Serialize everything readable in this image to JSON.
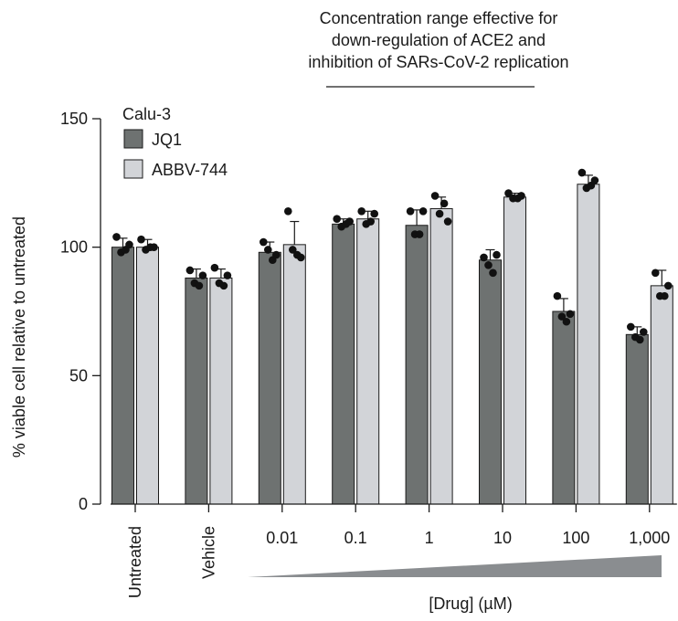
{
  "chart_data": {
    "type": "bar",
    "panel_label": "Calu-3",
    "ylabel": "% viable cell relative to untreated",
    "xlabel": "[Drug] (µM)",
    "ylim": [
      0,
      150
    ],
    "yticks": [
      0,
      50,
      100,
      150
    ],
    "grid": false,
    "legend_position": "top-left",
    "categories": [
      "Untreated",
      "Vehicle",
      "0.01",
      "0.1",
      "1",
      "10",
      "100",
      "1,000"
    ],
    "annotation": {
      "lines": [
        "Concentration range effective for",
        "down-regulation of ACE2 and",
        "inhibition of SARs-CoV-2 replication"
      ]
    },
    "series": [
      {
        "name": "JQ1",
        "color": "#6e7271",
        "values": [
          100,
          88,
          98,
          109,
          108.5,
          95,
          75,
          66
        ],
        "error": [
          3.5,
          3.5,
          4,
          2,
          6,
          4,
          5,
          3
        ],
        "points": [
          [
            104,
            98,
            99,
            101
          ],
          [
            91,
            86,
            85,
            89
          ],
          [
            102,
            99,
            95,
            97
          ],
          [
            111,
            108,
            109,
            110
          ],
          [
            114,
            105,
            105,
            114
          ],
          [
            96,
            93,
            90,
            97
          ],
          [
            81,
            73,
            71,
            74
          ],
          [
            69,
            65,
            64,
            67
          ]
        ]
      },
      {
        "name": "ABBV-744",
        "color": "#d2d4d8",
        "values": [
          100,
          88,
          101,
          111,
          115,
          119.5,
          124.5,
          85
        ],
        "error": [
          3,
          3.5,
          9,
          3,
          4.5,
          1.5,
          3.5,
          6
        ],
        "points": [
          [
            103,
            99,
            100,
            100
          ],
          [
            92,
            86,
            85,
            89
          ],
          [
            114,
            99,
            97,
            96
          ],
          [
            114,
            109,
            110,
            113
          ],
          [
            120,
            113,
            117,
            110
          ],
          [
            121,
            119,
            119,
            120
          ],
          [
            129,
            123,
            124,
            126
          ],
          [
            90,
            81,
            81,
            85
          ]
        ]
      }
    ]
  }
}
